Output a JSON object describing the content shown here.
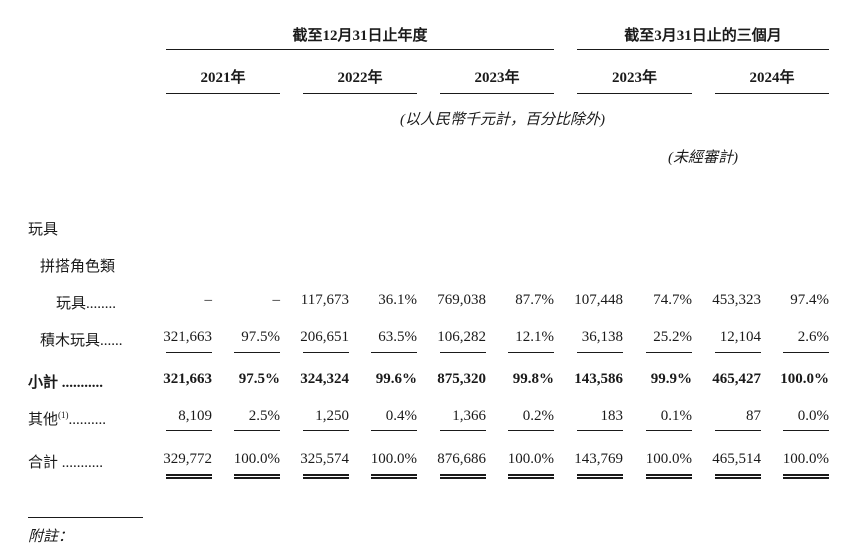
{
  "header": {
    "group1": "截至12月31日止年度",
    "group2": "截至3月31日止的三個月",
    "years": [
      "2021年",
      "2022年",
      "2023年",
      "2023年",
      "2024年"
    ],
    "unit_note": "(以人民幣千元計，百分比除外)",
    "unaudited_note": "(未經審計)"
  },
  "labels": {
    "toys": "玩具",
    "assembly": "拼搭角色類",
    "assembly_toys": "玩具........",
    "building": "積木玩具......",
    "subtotal": "小計 ...........",
    "other": "其他",
    "other_sup": "(1)",
    "other_dots": "..........",
    "total": "合計 ...........",
    "footnote": "附註："
  },
  "rows": {
    "assembly_toys": [
      "–",
      "–",
      "117,673",
      "36.1%",
      "769,038",
      "87.7%",
      "107,448",
      "74.7%",
      "453,323",
      "97.4%"
    ],
    "building": [
      "321,663",
      "97.5%",
      "206,651",
      "63.5%",
      "106,282",
      "12.1%",
      "36,138",
      "25.2%",
      "12,104",
      "2.6%"
    ],
    "subtotal": [
      "321,663",
      "97.5%",
      "324,324",
      "99.6%",
      "875,320",
      "99.8%",
      "143,586",
      "99.9%",
      "465,427",
      "100.0%"
    ],
    "other": [
      "8,109",
      "2.5%",
      "1,250",
      "0.4%",
      "1,366",
      "0.2%",
      "183",
      "0.1%",
      "87",
      "0.0%"
    ],
    "total": [
      "329,772",
      "100.0%",
      "325,574",
      "100.0%",
      "876,686",
      "100.0%",
      "143,769",
      "100.0%",
      "465,514",
      "100.0%"
    ]
  }
}
